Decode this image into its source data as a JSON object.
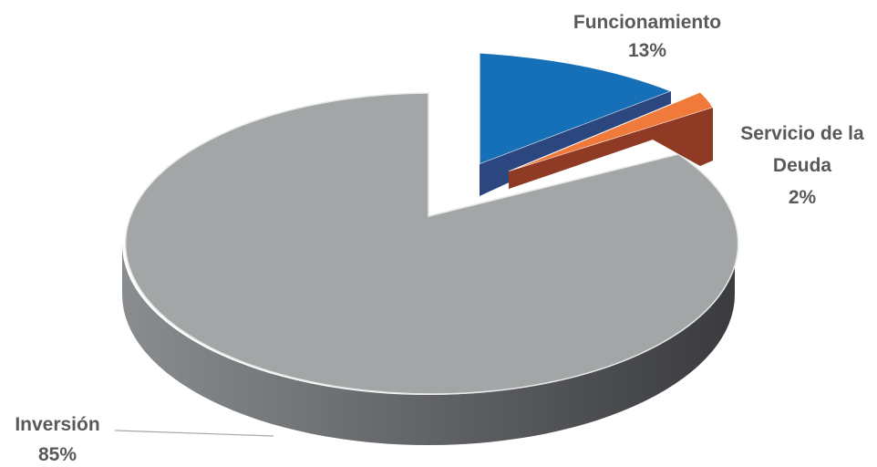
{
  "chart_data": {
    "type": "pie",
    "three_d": true,
    "exploded": true,
    "slices": [
      {
        "category": "Funcionamiento",
        "value": 13,
        "label_lines": [
          "Funcionamiento",
          "13%"
        ],
        "color_top": "#1670b8",
        "color_side": "#2c4680"
      },
      {
        "category": "Servicio de la Deuda",
        "value": 2,
        "label_lines": [
          "Servicio de la",
          "Deuda",
          "2%"
        ],
        "color_top": "#f07a3a",
        "color_side": "#8f3a24"
      },
      {
        "category": "Inversión",
        "value": 85,
        "label_lines": [
          "Inversión",
          "85%"
        ],
        "color_top": "#a3a6a7",
        "color_side": "#4a4b4e"
      }
    ],
    "legend": "none"
  }
}
